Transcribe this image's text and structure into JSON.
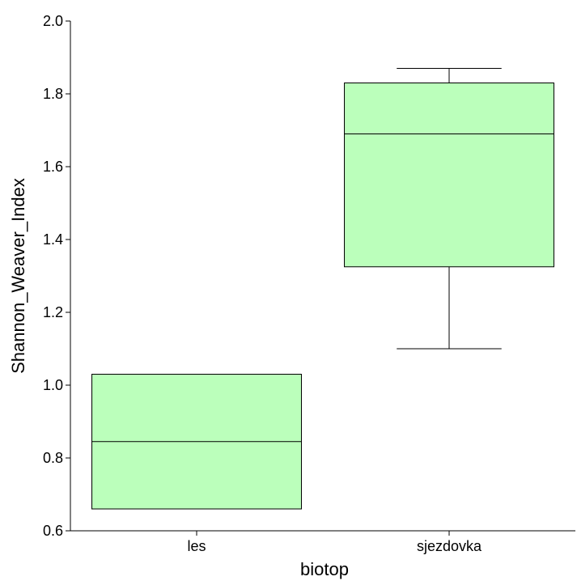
{
  "chart_data": {
    "type": "box",
    "xlabel": "biotop",
    "ylabel": "Shannon_Weaver_Index",
    "ylim": [
      0.6,
      2.0
    ],
    "yticks": [
      "0.6",
      "0.8",
      "1.0",
      "1.2",
      "1.4",
      "1.6",
      "1.8",
      "2.0"
    ],
    "categories": [
      "les",
      "sjezdovka"
    ],
    "boxes": [
      {
        "category": "les",
        "whisker_low": 0.66,
        "q1": 0.66,
        "median": 0.845,
        "q3": 1.03,
        "whisker_high": 1.03
      },
      {
        "category": "sjezdovka",
        "whisker_low": 1.1,
        "q1": 1.325,
        "median": 1.69,
        "q3": 1.83,
        "whisker_high": 1.87
      }
    ],
    "box_fill": "#bbffbb",
    "grid": false,
    "legend": "none"
  }
}
